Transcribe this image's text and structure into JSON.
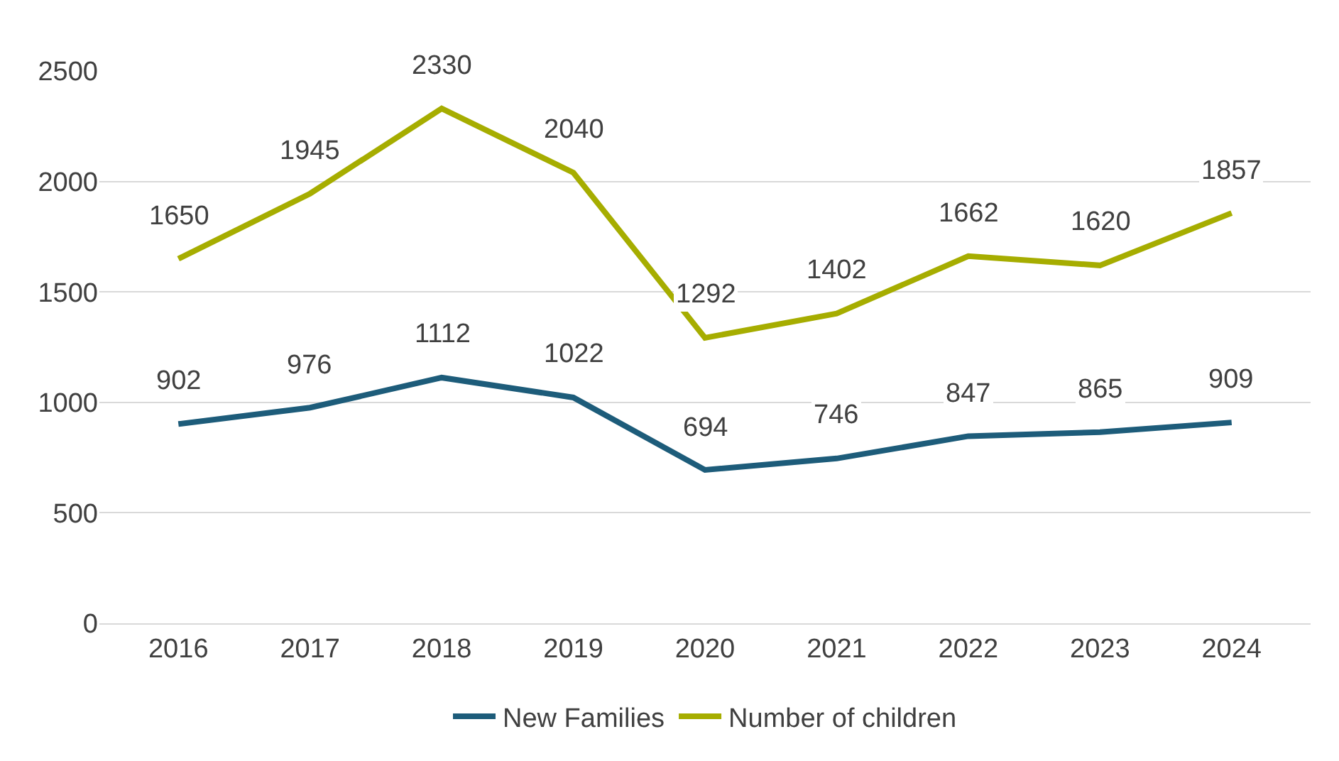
{
  "chart_data": {
    "type": "line",
    "categories": [
      "2016",
      "2017",
      "2018",
      "2019",
      "2020",
      "2021",
      "2022",
      "2023",
      "2024"
    ],
    "series": [
      {
        "name": "New Families",
        "color": "#1d5c7a",
        "values": [
          902,
          976,
          1112,
          1022,
          694,
          746,
          847,
          865,
          909
        ]
      },
      {
        "name": "Number of children",
        "color": "#a6ad00",
        "values": [
          1650,
          1945,
          2330,
          2040,
          1292,
          1402,
          1662,
          1620,
          1857
        ]
      }
    ],
    "ylim": [
      0,
      2500
    ],
    "yticks": [
      0,
      500,
      1000,
      1500,
      2000,
      2500
    ],
    "grid": "y",
    "legend": "bottom",
    "data_labels": true,
    "marker": "none",
    "line_style": "solid"
  }
}
